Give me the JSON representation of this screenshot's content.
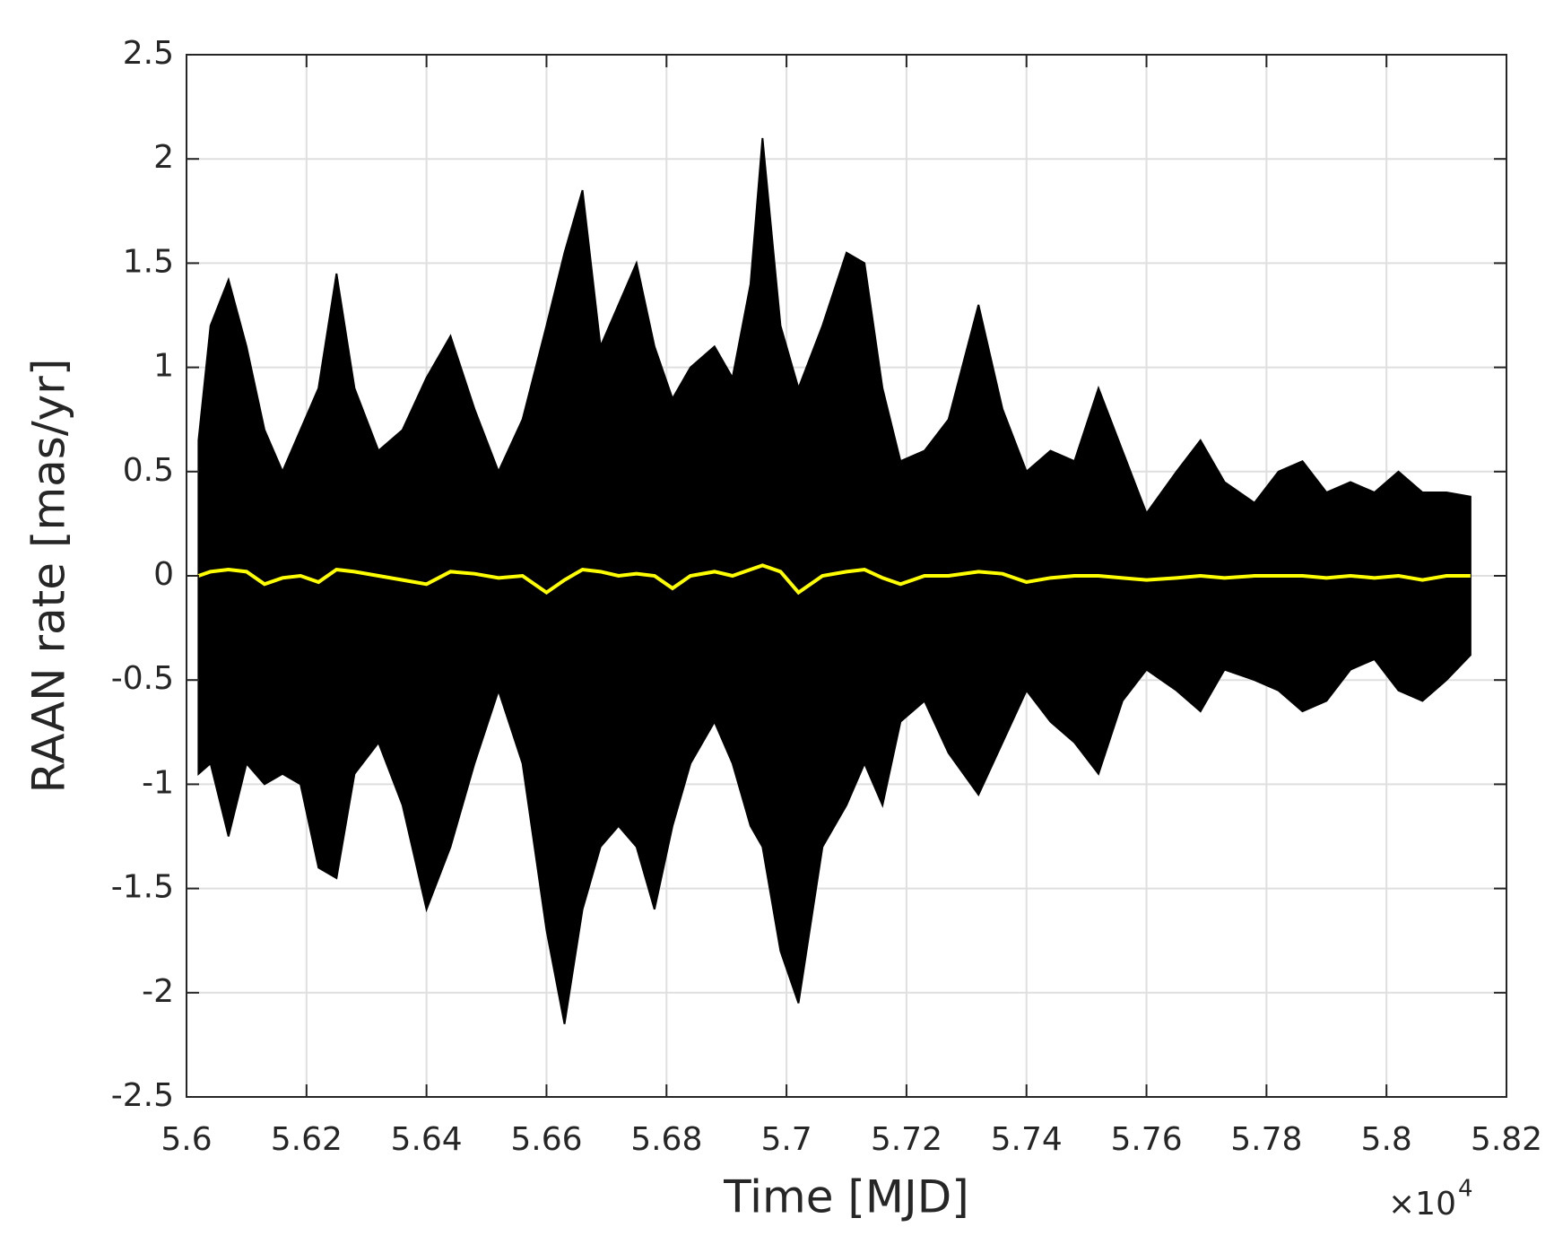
{
  "chart_data": {
    "type": "line",
    "xlabel": "Time [MJD]",
    "ylabel": "RAAN rate [mas/yr]",
    "x_multiplier_base": "×10",
    "x_multiplier_exponent": "4",
    "xlim": [
      5.6,
      5.82
    ],
    "xticks": [
      5.6,
      5.62,
      5.64,
      5.66,
      5.68,
      5.7,
      5.72,
      5.74,
      5.76,
      5.78,
      5.8,
      5.82
    ],
    "ylim": [
      -2.5,
      2.5
    ],
    "yticks": [
      -2.5,
      -2,
      -1.5,
      -1,
      -0.5,
      0,
      0.5,
      1,
      1.5,
      2,
      2.5
    ],
    "grid": true,
    "x": [
      5.602,
      5.604,
      5.607,
      5.61,
      5.613,
      5.616,
      5.619,
      5.622,
      5.625,
      5.628,
      5.632,
      5.636,
      5.64,
      5.644,
      5.648,
      5.652,
      5.656,
      5.66,
      5.663,
      5.666,
      5.669,
      5.672,
      5.675,
      5.678,
      5.681,
      5.684,
      5.688,
      5.691,
      5.694,
      5.696,
      5.699,
      5.702,
      5.706,
      5.71,
      5.713,
      5.716,
      5.719,
      5.723,
      5.727,
      5.732,
      5.736,
      5.74,
      5.744,
      5.748,
      5.752,
      5.756,
      5.76,
      5.765,
      5.769,
      5.773,
      5.778,
      5.782,
      5.786,
      5.79,
      5.794,
      5.798,
      5.802,
      5.806,
      5.81,
      5.814
    ],
    "series": [
      {
        "color": "#000000",
        "upper": [
          0.65,
          1.2,
          1.42,
          1.1,
          0.7,
          0.5,
          0.7,
          0.9,
          1.45,
          0.9,
          0.6,
          0.7,
          0.95,
          1.15,
          0.8,
          0.5,
          0.75,
          1.2,
          1.55,
          1.85,
          1.1,
          1.3,
          1.5,
          1.1,
          0.85,
          1.0,
          1.1,
          0.95,
          1.4,
          2.1,
          1.2,
          0.9,
          1.2,
          1.55,
          1.5,
          0.9,
          0.55,
          0.6,
          0.75,
          1.3,
          0.8,
          0.5,
          0.6,
          0.55,
          0.9,
          0.6,
          0.3,
          0.5,
          0.65,
          0.45,
          0.35,
          0.5,
          0.55,
          0.4,
          0.45,
          0.4,
          0.5,
          0.4,
          0.4,
          0.38
        ],
        "lower": [
          -0.95,
          -0.9,
          -1.25,
          -0.9,
          -1.0,
          -0.95,
          -1.0,
          -1.4,
          -1.45,
          -0.95,
          -0.8,
          -1.1,
          -1.6,
          -1.3,
          -0.9,
          -0.55,
          -0.9,
          -1.7,
          -2.15,
          -1.6,
          -1.3,
          -1.2,
          -1.3,
          -1.6,
          -1.2,
          -0.9,
          -0.7,
          -0.9,
          -1.2,
          -1.3,
          -1.8,
          -2.05,
          -1.3,
          -1.1,
          -0.9,
          -1.1,
          -0.7,
          -0.6,
          -0.85,
          -1.05,
          -0.8,
          -0.55,
          -0.7,
          -0.8,
          -0.95,
          -0.6,
          -0.45,
          -0.55,
          -0.65,
          -0.45,
          -0.5,
          -0.55,
          -0.65,
          -0.6,
          -0.45,
          -0.4,
          -0.55,
          -0.6,
          -0.5,
          -0.38
        ]
      },
      {
        "color": "#ffff00",
        "values": [
          0.0,
          0.02,
          0.03,
          0.02,
          -0.04,
          -0.01,
          0.0,
          -0.03,
          0.03,
          0.02,
          0.0,
          -0.02,
          -0.04,
          0.02,
          0.01,
          -0.01,
          0.0,
          -0.08,
          -0.02,
          0.03,
          0.02,
          0.0,
          0.01,
          0.0,
          -0.06,
          0.0,
          0.02,
          0.0,
          0.03,
          0.05,
          0.02,
          -0.08,
          0.0,
          0.02,
          0.03,
          -0.01,
          -0.04,
          0.0,
          0.0,
          0.02,
          0.01,
          -0.03,
          -0.01,
          0.0,
          0.0,
          -0.01,
          -0.02,
          -0.01,
          0.0,
          -0.01,
          0.0,
          0.0,
          0.0,
          -0.01,
          0.0,
          -0.01,
          0.0,
          -0.02,
          0.0,
          0.0
        ]
      }
    ]
  }
}
